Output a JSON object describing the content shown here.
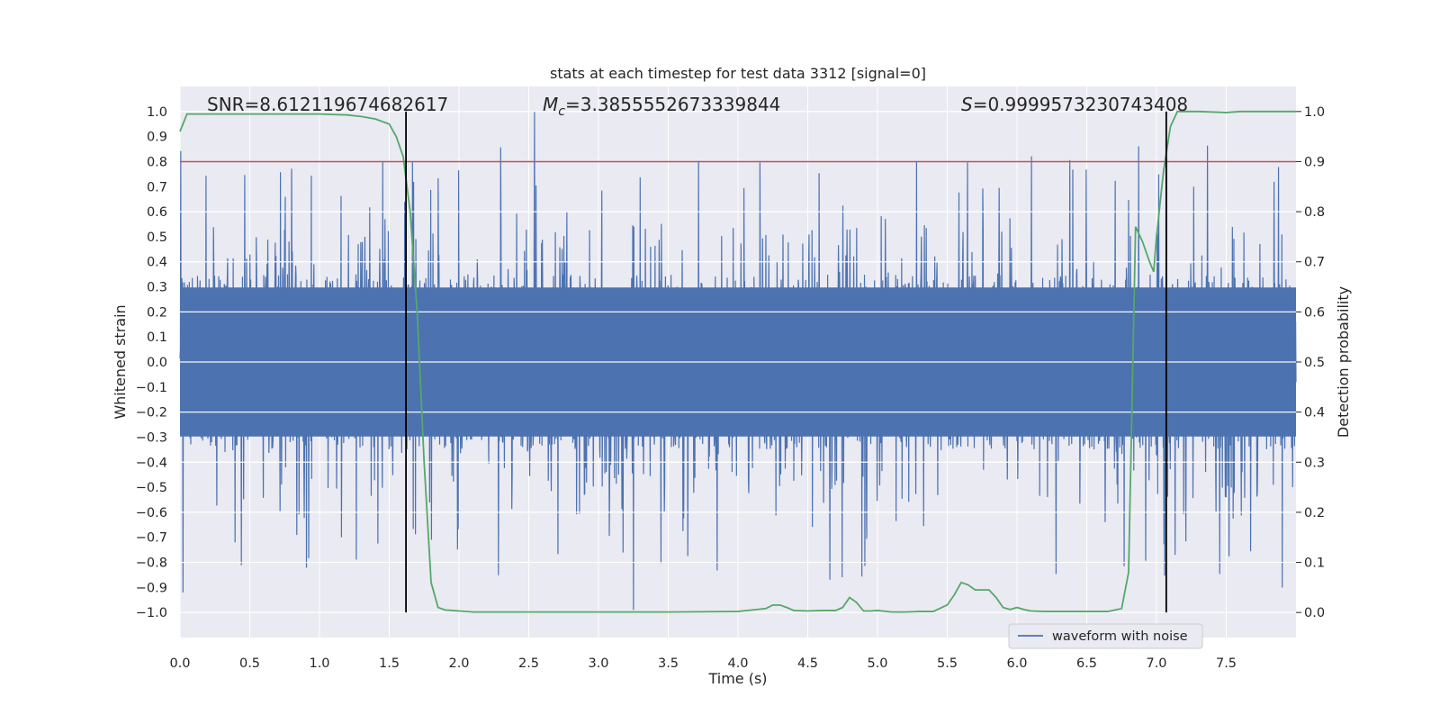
{
  "chart_data": {
    "type": "line",
    "title": "stats at each timestep for test data 3312 [signal=0]",
    "xlabel": "Time (s)",
    "ylabel_left": "Whitened strain",
    "ylabel_right": "Detection probability",
    "xlim": [
      0,
      8
    ],
    "ylim_left": [
      -1.1,
      1.1
    ],
    "ylim_right": [
      -0.05,
      1.05
    ],
    "x_ticks": [
      "0.0",
      "0.5",
      "1.0",
      "1.5",
      "2.0",
      "2.5",
      "3.0",
      "3.5",
      "4.0",
      "4.5",
      "5.0",
      "5.5",
      "6.0",
      "6.5",
      "7.0",
      "7.5"
    ],
    "y_ticks_left": [
      "−1.0",
      "−0.9",
      "−0.8",
      "−0.7",
      "−0.6",
      "−0.5",
      "−0.4",
      "−0.3",
      "−0.2",
      "−0.1",
      "0.0",
      "0.1",
      "0.2",
      "0.3",
      "0.4",
      "0.5",
      "0.6",
      "0.7",
      "0.8",
      "0.9",
      "1.0"
    ],
    "y_ticks_right": [
      "0.0",
      "0.1",
      "0.2",
      "0.3",
      "0.4",
      "0.5",
      "0.6",
      "0.7",
      "0.8",
      "0.9",
      "1.0"
    ],
    "grid": true,
    "legend": {
      "placement": "lower-right",
      "entries": [
        "waveform with noise"
      ]
    },
    "annotations": {
      "snr": "SNR=8.612119674682617",
      "mc_value": "=3.3855552673339844",
      "s_value": "=0.9999573230743408"
    },
    "threshold": {
      "axis": "right",
      "value": 0.9,
      "color": "#c44e52"
    },
    "vlines": [
      1.62,
      7.07
    ],
    "colors": {
      "waveform": "#4c72b0",
      "probability": "#55a868",
      "threshold": "#c44e52",
      "vline": "#000000",
      "background": "#eaeaf2"
    },
    "series": [
      {
        "name": "waveform with noise",
        "axis": "left",
        "style": "dense-noise",
        "x_range": [
          0,
          8
        ],
        "core_envelope": 0.35,
        "peak_max": 1.0,
        "peak_min": -0.99
      },
      {
        "axis": "right",
        "x": [
          0.0,
          0.05,
          0.25,
          0.5,
          0.75,
          1.0,
          1.2,
          1.3,
          1.4,
          1.5,
          1.55,
          1.6,
          1.65,
          1.7,
          1.75,
          1.8,
          1.85,
          1.9,
          2.0,
          2.1,
          2.5,
          3.0,
          3.5,
          4.0,
          4.1,
          4.2,
          4.25,
          4.3,
          4.35,
          4.4,
          4.5,
          4.6,
          4.7,
          4.75,
          4.8,
          4.85,
          4.9,
          4.95,
          5.0,
          5.1,
          5.2,
          5.3,
          5.4,
          5.5,
          5.55,
          5.6,
          5.65,
          5.7,
          5.75,
          5.8,
          5.85,
          5.9,
          5.95,
          6.0,
          6.05,
          6.1,
          6.2,
          6.3,
          6.5,
          6.65,
          6.75,
          6.8,
          6.85,
          6.9,
          6.95,
          6.98,
          7.0,
          7.05,
          7.1,
          7.15,
          7.2,
          7.3,
          7.5,
          7.6,
          8.0
        ],
        "y": [
          0.96,
          0.995,
          0.995,
          0.995,
          0.995,
          0.995,
          0.993,
          0.99,
          0.985,
          0.975,
          0.95,
          0.91,
          0.8,
          0.6,
          0.3,
          0.06,
          0.01,
          0.005,
          0.003,
          0.001,
          0.001,
          0.001,
          0.001,
          0.002,
          0.005,
          0.008,
          0.015,
          0.015,
          0.01,
          0.004,
          0.003,
          0.004,
          0.004,
          0.01,
          0.03,
          0.02,
          0.003,
          0.003,
          0.004,
          0.001,
          0.001,
          0.002,
          0.002,
          0.015,
          0.035,
          0.06,
          0.055,
          0.045,
          0.045,
          0.045,
          0.03,
          0.01,
          0.006,
          0.01,
          0.006,
          0.003,
          0.002,
          0.002,
          0.002,
          0.002,
          0.008,
          0.08,
          0.77,
          0.74,
          0.7,
          0.68,
          0.75,
          0.88,
          0.97,
          1.0,
          1.0,
          1.0,
          0.998,
          1.0,
          1.0
        ]
      }
    ]
  }
}
